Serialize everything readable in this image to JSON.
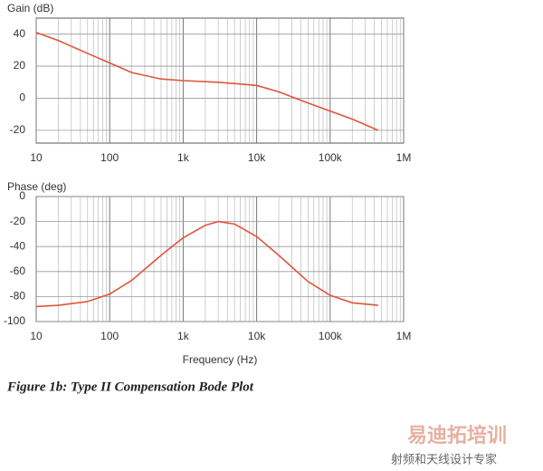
{
  "chart_data": [
    {
      "type": "line",
      "ylabel": "Gain (dB)",
      "xscale": "log",
      "x": [
        10,
        20,
        50,
        100,
        200,
        500,
        1000,
        3000,
        10000,
        20000,
        50000,
        100000,
        200000,
        450000
      ],
      "series": [
        {
          "name": "Gain",
          "color": "#e0553a",
          "values": [
            41,
            36,
            28,
            22,
            16,
            12,
            11,
            10,
            8,
            4,
            -3,
            -8,
            -13,
            -20
          ]
        }
      ],
      "xlim": [
        10,
        1000000
      ],
      "xticks": [
        {
          "value": 10,
          "label": "10"
        },
        {
          "value": 100,
          "label": "100"
        },
        {
          "value": 1000,
          "label": "1k"
        },
        {
          "value": 10000,
          "label": "10k"
        },
        {
          "value": 100000,
          "label": "100k"
        },
        {
          "value": 1000000,
          "label": "1M"
        }
      ],
      "ylim": [
        -28,
        50
      ],
      "yticks": [
        40,
        20,
        0,
        -20
      ],
      "grid": true
    },
    {
      "type": "line",
      "ylabel": "Phase (deg)",
      "xlabel": "Frequency (Hz)",
      "xscale": "log",
      "x": [
        10,
        20,
        50,
        100,
        200,
        500,
        1000,
        2000,
        3000,
        5000,
        10000,
        20000,
        50000,
        100000,
        200000,
        450000
      ],
      "series": [
        {
          "name": "Phase",
          "color": "#e0553a",
          "values": [
            -88,
            -87,
            -84,
            -78,
            -67,
            -47,
            -33,
            -23,
            -20,
            -22,
            -32,
            -47,
            -68,
            -79,
            -85,
            -87
          ]
        }
      ],
      "xlim": [
        10,
        1000000
      ],
      "xticks": [
        {
          "value": 10,
          "label": "10"
        },
        {
          "value": 100,
          "label": "100"
        },
        {
          "value": 1000,
          "label": "1k"
        },
        {
          "value": 10000,
          "label": "10k"
        },
        {
          "value": 100000,
          "label": "100k"
        },
        {
          "value": 1000000,
          "label": "1M"
        }
      ],
      "ylim": [
        -100,
        0
      ],
      "yticks": [
        0,
        -20,
        -40,
        -60,
        -80,
        -100
      ],
      "grid": true
    }
  ],
  "caption": "Figure 1b: Type II Compensation Bode Plot",
  "watermark": {
    "brand": "易迪拓培训",
    "tagline": "射频和天线设计专家"
  }
}
